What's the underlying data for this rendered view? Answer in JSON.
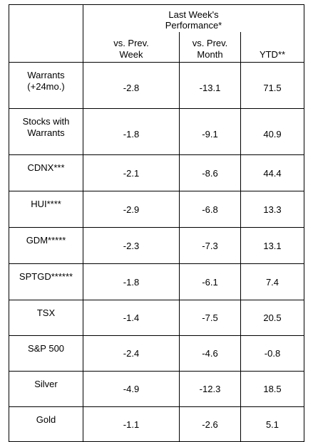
{
  "header": {
    "group_title_line1": "Last Week's",
    "group_title_line2": "Performance*",
    "columns": [
      {
        "line1": "vs. Prev.",
        "line2": "Week"
      },
      {
        "line1": "vs. Prev.",
        "line2": "Month"
      },
      {
        "line1": "YTD**",
        "line2": ""
      }
    ]
  },
  "rows": [
    {
      "label_line1": "Warrants",
      "label_line2": "(+24mo.)",
      "week": "-2.8",
      "month": "-13.1",
      "ytd": "71.5"
    },
    {
      "label_line1": "Stocks with",
      "label_line2": "Warrants",
      "week": "-1.8",
      "month": "-9.1",
      "ytd": "40.9"
    },
    {
      "label_line1": "CDNX***",
      "label_line2": "",
      "week": "-2.1",
      "month": "-8.6",
      "ytd": "44.4"
    },
    {
      "label_line1": "HUI****",
      "label_line2": "",
      "week": "-2.9",
      "month": "-6.8",
      "ytd": "13.3"
    },
    {
      "label_line1": "GDM*****",
      "label_line2": "",
      "week": "-2.3",
      "month": "-7.3",
      "ytd": "13.1"
    },
    {
      "label_line1": "SPTGD******",
      "label_line2": "",
      "week": "-1.8",
      "month": "-6.1",
      "ytd": "7.4"
    },
    {
      "label_line1": "TSX",
      "label_line2": "",
      "week": "-1.4",
      "month": "-7.5",
      "ytd": "20.5"
    },
    {
      "label_line1": "S&P 500",
      "label_line2": "",
      "week": "-2.4",
      "month": "-4.6",
      "ytd": "-0.8"
    },
    {
      "label_line1": "Silver",
      "label_line2": "",
      "week": "-4.9",
      "month": "-12.3",
      "ytd": "18.5"
    },
    {
      "label_line1": "Gold",
      "label_line2": "",
      "week": "-1.1",
      "month": "-2.6",
      "ytd": "5.1"
    }
  ]
}
